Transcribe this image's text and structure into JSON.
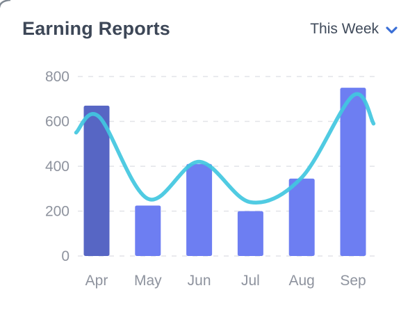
{
  "header": {
    "title": "Earning Reports",
    "period_selector": {
      "label": "This Week",
      "icon": "chevron-down-icon"
    }
  },
  "chart_data": {
    "type": "bar+line",
    "title": "Earning Reports",
    "categories": [
      "Apr",
      "May",
      "Jun",
      "Jul",
      "Aug",
      "Sep"
    ],
    "series": [
      {
        "name": "monthly-earnings",
        "type": "bar",
        "values": [
          670,
          225,
          410,
          200,
          345,
          750
        ],
        "color": "#6d7ef2",
        "highlight_index": 0,
        "highlight_color": "#5766c4"
      },
      {
        "name": "earnings-trend",
        "type": "line",
        "color": "#41c7df",
        "x": [
          -0.4,
          0.05,
          1,
          2,
          3,
          4,
          5,
          5.4
        ],
        "values": [
          550,
          620,
          255,
          420,
          240,
          350,
          715,
          590
        ]
      }
    ],
    "yticks": [
      0,
      200,
      400,
      600,
      800
    ],
    "ylim": [
      0,
      800
    ],
    "xlabel": "",
    "ylabel": "",
    "grid": "dashed-horizontal",
    "legend": "none"
  },
  "colors": {
    "background": "#ffffff",
    "title_text": "#3d4757",
    "dropdown_text": "#3f4a5a",
    "chevron": "#3b6fd6",
    "axis_text": "#8e939e",
    "gridline": "#e2e4e8",
    "bar": "#6d7ef2",
    "bar_highlight": "#5766c4",
    "line": "#41c7df"
  }
}
